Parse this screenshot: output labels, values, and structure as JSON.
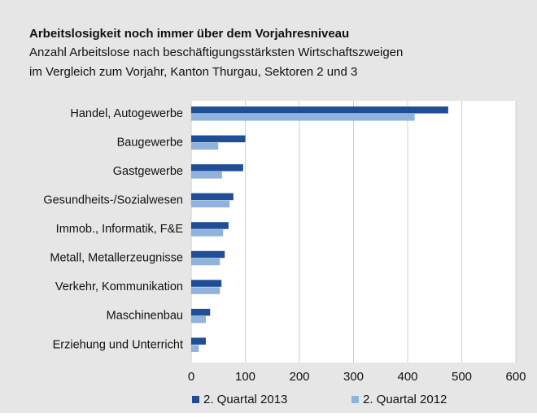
{
  "chart_data": {
    "type": "bar",
    "orientation": "horizontal",
    "title": "Arbeitslosigkeit noch immer über dem Vorjahresniveau",
    "subtitle": [
      "Anzahl Arbeitslose nach beschäftigungsstärksten Wirtschaftszweigen",
      "im Vergleich zum Vorjahr, Kanton Thurgau, Sektoren 2 und 3"
    ],
    "categories": [
      "Handel, Autogewerbe",
      "Baugewerbe",
      "Gastgewerbe",
      "Gesundheits-/Sozialwesen",
      "Immob., Informatik, F&E",
      "Metall, Metallerzeugnisse",
      "Verkehr, Kommunikation",
      "Maschinenbau",
      "Erziehung und Unterricht"
    ],
    "series": [
      {
        "name": "2. Quartal 2013",
        "color": "#1f4e96",
        "values": [
          475,
          100,
          96,
          78,
          69,
          62,
          56,
          35,
          27
        ]
      },
      {
        "name": "2. Quartal 2012",
        "color": "#8fb3dc",
        "values": [
          413,
          50,
          57,
          71,
          59,
          53,
          53,
          27,
          14
        ]
      }
    ],
    "xlim": [
      0,
      600
    ],
    "xticks": [
      0,
      100,
      200,
      300,
      400,
      500,
      600
    ],
    "grid": true,
    "legend": "bottom"
  }
}
